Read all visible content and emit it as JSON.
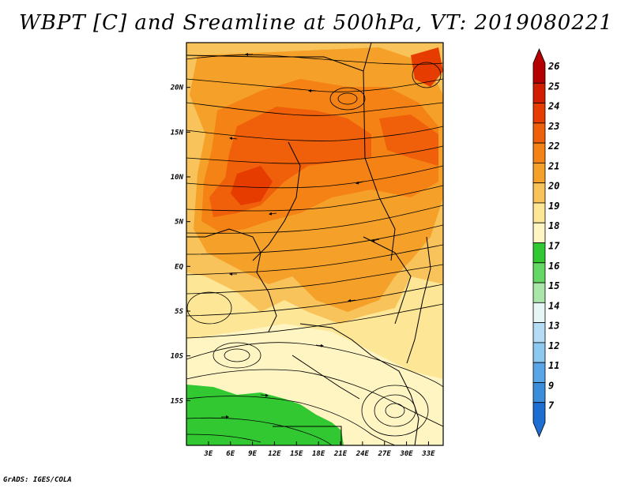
{
  "title": "WBPT [C] and Sreamline at 500hPa, VT: 2019080221",
  "credit": "GrADS: IGES/COLA",
  "map": {
    "variable": "Wet-bulb potential temperature",
    "units": "C",
    "level": "500hPa",
    "valid_time": "2019080221",
    "lon_range": [
      0,
      35
    ],
    "lat_range": [
      -20,
      25
    ],
    "lon_ticks": [
      {
        "value": 3,
        "label": "3E"
      },
      {
        "value": 6,
        "label": "6E"
      },
      {
        "value": 9,
        "label": "9E"
      },
      {
        "value": 12,
        "label": "12E"
      },
      {
        "value": 15,
        "label": "15E"
      },
      {
        "value": 18,
        "label": "18E"
      },
      {
        "value": 21,
        "label": "21E"
      },
      {
        "value": 24,
        "label": "24E"
      },
      {
        "value": 27,
        "label": "27E"
      },
      {
        "value": 30,
        "label": "30E"
      },
      {
        "value": 33,
        "label": "33E"
      }
    ],
    "lat_ticks": [
      {
        "value": 20,
        "label": "20N"
      },
      {
        "value": 15,
        "label": "15N"
      },
      {
        "value": 10,
        "label": "10N"
      },
      {
        "value": 5,
        "label": "5N"
      },
      {
        "value": 0,
        "label": "EQ"
      },
      {
        "value": -5,
        "label": "5S"
      },
      {
        "value": -10,
        "label": "10S"
      },
      {
        "value": -15,
        "label": "15S"
      }
    ]
  },
  "colorbar": {
    "labels": [
      "26",
      "25",
      "24",
      "23",
      "22",
      "21",
      "20",
      "19",
      "18",
      "17",
      "16",
      "15",
      "14",
      "13",
      "12",
      "11",
      "9",
      "7"
    ],
    "colors": [
      "#b40000",
      "#d21e00",
      "#e63c00",
      "#f0600a",
      "#f58214",
      "#f5a028",
      "#f8c35a",
      "#fde696",
      "#fff5c3",
      "#32c832",
      "#64d764",
      "#aae6aa",
      "#e6f5f5",
      "#b4dcf5",
      "#8cc8f0",
      "#5aa5e6",
      "#3c8cdc",
      "#1e6ed2"
    ]
  }
}
